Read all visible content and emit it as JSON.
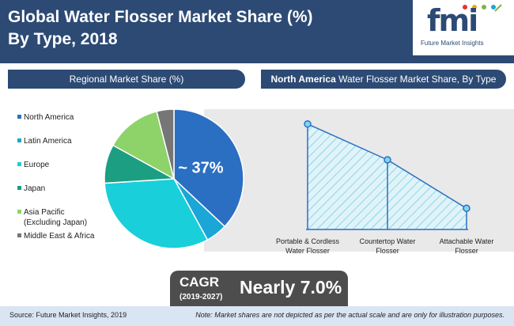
{
  "header": {
    "title_line1": "Global Water Flosser Market Share (%)",
    "title_line2": "By Type, 2018",
    "logo_text": "fmi",
    "logo_subtitle": "Future Market Insights"
  },
  "left_panel": {
    "title": "Regional Market Share (%)"
  },
  "right_panel": {
    "title_bold": "North America",
    "title_rest": " Water Flosser Market Share, By Type"
  },
  "pie_callout": "~ 37%",
  "chart_data": [
    {
      "type": "pie",
      "title": "Regional Market Share (%)",
      "legend_position": "left",
      "categories": [
        "North America",
        "Latin America",
        "Europe",
        "Japan",
        "Asia Pacific (Excluding Japan)",
        "Middle East & Africa"
      ],
      "values": [
        37,
        5,
        32,
        9,
        13,
        4
      ],
      "colors": [
        "#2b6fc2",
        "#1aa6d6",
        "#19cfda",
        "#1c9e83",
        "#8ed26a",
        "#767676"
      ],
      "data_labels": [
        "~ 37%",
        "",
        "",
        "",
        "",
        ""
      ]
    },
    {
      "type": "area",
      "title": "North America Water Flosser Market Share, By Type",
      "categories": [
        "Portable & Cordless Water Flosser",
        "Countertop Water Flosser",
        "Attachable Water Flosser"
      ],
      "values": [
        50,
        33,
        10
      ],
      "ylim": [
        0,
        60
      ],
      "grid": false,
      "note": "illustrative"
    }
  ],
  "cagr": {
    "label": "CAGR",
    "period": "(2019-2027)",
    "value": "Nearly 7.0%"
  },
  "footer": {
    "source": "Source: Future Market Insights, 2019",
    "note": "Note: Market shares are not depicted as per the actual scale and are only for illustration purposes."
  }
}
